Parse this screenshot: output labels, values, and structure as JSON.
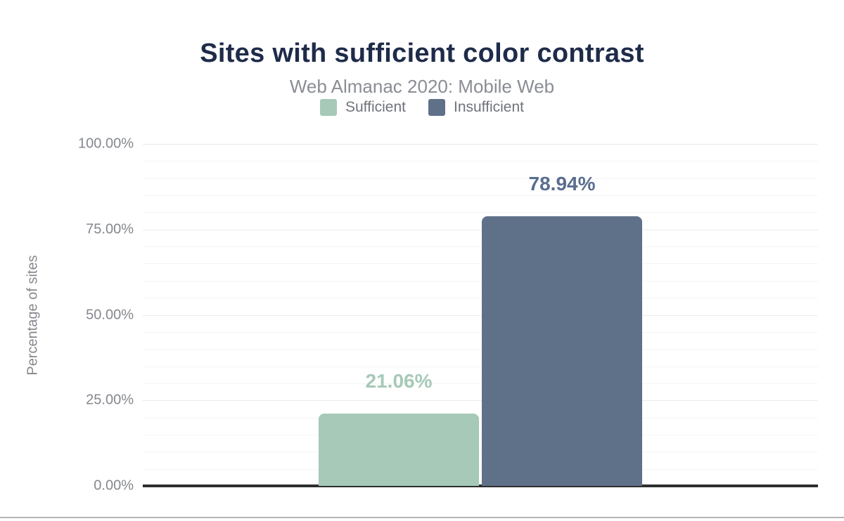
{
  "chart": {
    "title": "Sites with sufficient color contrast",
    "subtitle": "Web Almanac 2020: Mobile Web"
  },
  "legend": {
    "items": [
      {
        "label": "Sufficient",
        "color": "#a6c9b8"
      },
      {
        "label": "Insufficient",
        "color": "#5f7189"
      }
    ]
  },
  "chart_data": {
    "type": "bar",
    "title": "Sites with sufficient color contrast",
    "subtitle": "Web Almanac 2020: Mobile Web",
    "categories": [
      "Sufficient",
      "Insufficient"
    ],
    "values": [
      21.06,
      78.94
    ],
    "value_labels": [
      "21.06%",
      "78.94%"
    ],
    "series_colors": [
      "#a6c9b8",
      "#5f7189"
    ],
    "value_label_colors": [
      "#a6c9b8",
      "#5a6d8d"
    ],
    "xlabel": "",
    "ylabel": "Percentage of sites",
    "ylim": [
      0,
      100
    ],
    "yticks": [
      "0.00%",
      "25.00%",
      "50.00%",
      "75.00%",
      "100.00%"
    ],
    "ytick_major_step": 25,
    "ytick_minor_step": 5,
    "grid": "horizontal",
    "legend_position": "top"
  },
  "colors": {
    "title": "#1f2b4a",
    "subtitle": "#8a8d93",
    "tick_label": "#84878d",
    "axis_line": "#2e2e2e",
    "gridline_minor": "#f5f5f6",
    "gridline_major": "#eaeaec",
    "bottom_separator": "#b5b5b5"
  }
}
